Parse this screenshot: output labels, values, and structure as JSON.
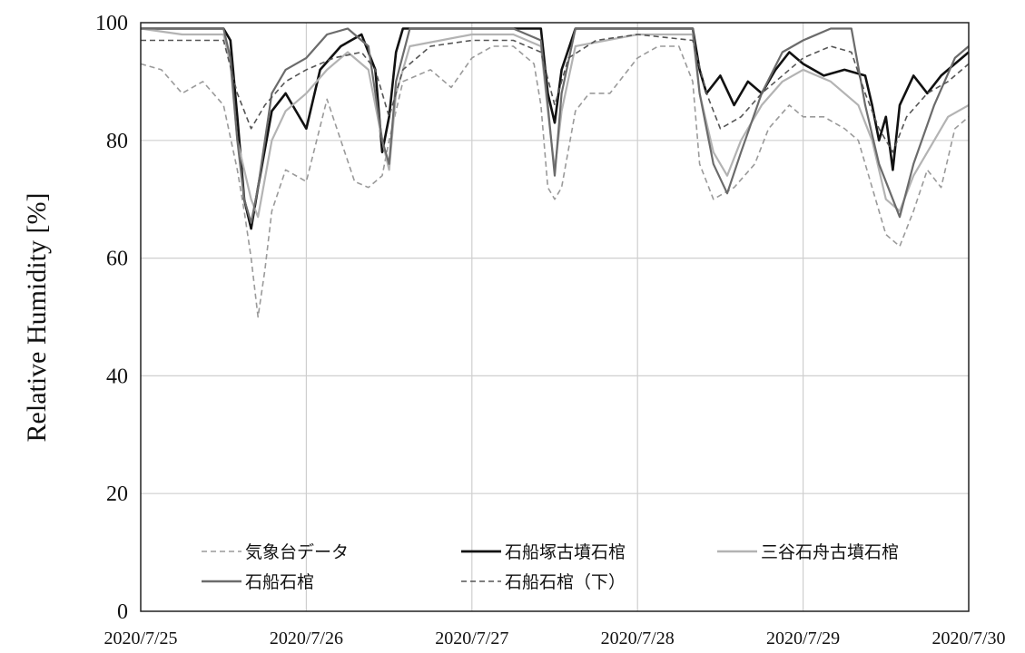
{
  "chart_data": {
    "type": "line",
    "title": "",
    "xlabel": "",
    "ylabel": "Relative Humidity [%]",
    "x_range": [
      "2020/7/25",
      "2020/7/30"
    ],
    "ylim": [
      0,
      100
    ],
    "y_ticks": [
      0,
      20,
      40,
      60,
      80,
      100
    ],
    "x_tick_labels": [
      "2020/7/25",
      "2020/7/26",
      "2020/7/27",
      "2020/7/28",
      "2020/7/29",
      "2020/7/30"
    ],
    "grid": true,
    "legend_position": "bottom",
    "series": [
      {
        "name": "気象台データ",
        "color": "#9a9a9a",
        "dash": "dashed",
        "points": [
          [
            "2020/7/25 00:00",
            93
          ],
          [
            "2020/7/25 03:00",
            92
          ],
          [
            "2020/7/25 06:00",
            88
          ],
          [
            "2020/7/25 09:00",
            90
          ],
          [
            "2020/7/25 12:00",
            86
          ],
          [
            "2020/7/25 14:00",
            75
          ],
          [
            "2020/7/25 15:00",
            68
          ],
          [
            "2020/7/25 16:00",
            60
          ],
          [
            "2020/7/25 17:00",
            50
          ],
          [
            "2020/7/25 18:00",
            58
          ],
          [
            "2020/7/25 19:00",
            68
          ],
          [
            "2020/7/25 21:00",
            75
          ],
          [
            "2020/7/26 00:00",
            73
          ],
          [
            "2020/7/26 03:00",
            87
          ],
          [
            "2020/7/26 05:00",
            80
          ],
          [
            "2020/7/26 07:00",
            73
          ],
          [
            "2020/7/26 09:00",
            72
          ],
          [
            "2020/7/26 11:00",
            74
          ],
          [
            "2020/7/26 12:00",
            80
          ],
          [
            "2020/7/26 14:00",
            90
          ],
          [
            "2020/7/26 18:00",
            92
          ],
          [
            "2020/7/26 21:00",
            89
          ],
          [
            "2020/7/27 00:00",
            94
          ],
          [
            "2020/7/27 03:00",
            96
          ],
          [
            "2020/7/27 06:00",
            96
          ],
          [
            "2020/7/27 09:00",
            93
          ],
          [
            "2020/7/27 10:00",
            86
          ],
          [
            "2020/7/27 11:00",
            72
          ],
          [
            "2020/7/27 12:00",
            70
          ],
          [
            "2020/7/27 13:00",
            72
          ],
          [
            "2020/7/27 15:00",
            85
          ],
          [
            "2020/7/27 17:00",
            88
          ],
          [
            "2020/7/27 20:00",
            88
          ],
          [
            "2020/7/28 00:00",
            94
          ],
          [
            "2020/7/28 03:00",
            96
          ],
          [
            "2020/7/28 06:00",
            96
          ],
          [
            "2020/7/28 08:00",
            90
          ],
          [
            "2020/7/28 09:00",
            76
          ],
          [
            "2020/7/28 11:00",
            70
          ],
          [
            "2020/7/28 14:00",
            72
          ],
          [
            "2020/7/28 17:00",
            76
          ],
          [
            "2020/7/28 19:00",
            82
          ],
          [
            "2020/7/28 22:00",
            86
          ],
          [
            "2020/7/29 00:00",
            84
          ],
          [
            "2020/7/29 03:00",
            84
          ],
          [
            "2020/7/29 06:00",
            82
          ],
          [
            "2020/7/29 08:00",
            80
          ],
          [
            "2020/7/29 10:00",
            72
          ],
          [
            "2020/7/29 12:00",
            64
          ],
          [
            "2020/7/29 14:00",
            62
          ],
          [
            "2020/7/29 16:00",
            68
          ],
          [
            "2020/7/29 18:00",
            75
          ],
          [
            "2020/7/29 20:00",
            72
          ],
          [
            "2020/7/29 22:00",
            82
          ],
          [
            "2020/7/30 00:00",
            84
          ]
        ]
      },
      {
        "name": "石船塚古墳石棺",
        "color": "#111111",
        "dash": "solid",
        "points": [
          [
            "2020/7/25 00:00",
            99
          ],
          [
            "2020/7/25 06:00",
            99
          ],
          [
            "2020/7/25 12:00",
            99
          ],
          [
            "2020/7/25 13:00",
            97
          ],
          [
            "2020/7/25 14:00",
            84
          ],
          [
            "2020/7/25 15:00",
            70
          ],
          [
            "2020/7/25 16:00",
            65
          ],
          [
            "2020/7/25 17:00",
            72
          ],
          [
            "2020/7/25 19:00",
            85
          ],
          [
            "2020/7/25 21:00",
            88
          ],
          [
            "2020/7/26 00:00",
            82
          ],
          [
            "2020/7/26 02:00",
            92
          ],
          [
            "2020/7/26 05:00",
            96
          ],
          [
            "2020/7/26 08:00",
            98
          ],
          [
            "2020/7/26 10:00",
            92
          ],
          [
            "2020/7/26 11:00",
            78
          ],
          [
            "2020/7/26 12:00",
            84
          ],
          [
            "2020/7/26 13:00",
            95
          ],
          [
            "2020/7/26 14:00",
            99
          ],
          [
            "2020/7/27 00:00",
            99
          ],
          [
            "2020/7/27 06:00",
            99
          ],
          [
            "2020/7/27 10:00",
            99
          ],
          [
            "2020/7/27 11:00",
            88
          ],
          [
            "2020/7/27 12:00",
            83
          ],
          [
            "2020/7/27 13:00",
            92
          ],
          [
            "2020/7/27 15:00",
            99
          ],
          [
            "2020/7/28 00:00",
            99
          ],
          [
            "2020/7/28 08:00",
            99
          ],
          [
            "2020/7/28 09:00",
            92
          ],
          [
            "2020/7/28 10:00",
            88
          ],
          [
            "2020/7/28 12:00",
            91
          ],
          [
            "2020/7/28 14:00",
            86
          ],
          [
            "2020/7/28 16:00",
            90
          ],
          [
            "2020/7/28 18:00",
            88
          ],
          [
            "2020/7/28 20:00",
            92
          ],
          [
            "2020/7/28 22:00",
            95
          ],
          [
            "2020/7/29 00:00",
            93
          ],
          [
            "2020/7/29 03:00",
            91
          ],
          [
            "2020/7/29 06:00",
            92
          ],
          [
            "2020/7/29 09:00",
            91
          ],
          [
            "2020/7/29 10:00",
            86
          ],
          [
            "2020/7/29 11:00",
            80
          ],
          [
            "2020/7/29 12:00",
            84
          ],
          [
            "2020/7/29 13:00",
            75
          ],
          [
            "2020/7/29 14:00",
            86
          ],
          [
            "2020/7/29 16:00",
            91
          ],
          [
            "2020/7/29 18:00",
            88
          ],
          [
            "2020/7/29 20:00",
            91
          ],
          [
            "2020/7/29 22:00",
            93
          ],
          [
            "2020/7/30 00:00",
            95
          ]
        ]
      },
      {
        "name": "三谷石舟古墳石棺",
        "color": "#b3b3b3",
        "dash": "solid",
        "points": [
          [
            "2020/7/25 00:00",
            99
          ],
          [
            "2020/7/25 06:00",
            98
          ],
          [
            "2020/7/25 12:00",
            98
          ],
          [
            "2020/7/25 13:00",
            93
          ],
          [
            "2020/7/25 14:00",
            80
          ],
          [
            "2020/7/25 16:00",
            70
          ],
          [
            "2020/7/25 17:00",
            67
          ],
          [
            "2020/7/25 19:00",
            80
          ],
          [
            "2020/7/25 21:00",
            85
          ],
          [
            "2020/7/26 00:00",
            88
          ],
          [
            "2020/7/26 03:00",
            92
          ],
          [
            "2020/7/26 06:00",
            95
          ],
          [
            "2020/7/26 09:00",
            92
          ],
          [
            "2020/7/26 11:00",
            80
          ],
          [
            "2020/7/26 12:00",
            75
          ],
          [
            "2020/7/26 13:00",
            88
          ],
          [
            "2020/7/26 15:00",
            96
          ],
          [
            "2020/7/27 00:00",
            98
          ],
          [
            "2020/7/27 06:00",
            98
          ],
          [
            "2020/7/27 10:00",
            96
          ],
          [
            "2020/7/27 11:00",
            85
          ],
          [
            "2020/7/27 12:00",
            75
          ],
          [
            "2020/7/27 13:00",
            85
          ],
          [
            "2020/7/27 15:00",
            96
          ],
          [
            "2020/7/28 00:00",
            98
          ],
          [
            "2020/7/28 08:00",
            98
          ],
          [
            "2020/7/28 09:00",
            88
          ],
          [
            "2020/7/28 11:00",
            78
          ],
          [
            "2020/7/28 13:00",
            74
          ],
          [
            "2020/7/28 15:00",
            80
          ],
          [
            "2020/7/28 18:00",
            86
          ],
          [
            "2020/7/28 21:00",
            90
          ],
          [
            "2020/7/29 00:00",
            92
          ],
          [
            "2020/7/29 04:00",
            90
          ],
          [
            "2020/7/29 08:00",
            86
          ],
          [
            "2020/7/29 10:00",
            80
          ],
          [
            "2020/7/29 12:00",
            70
          ],
          [
            "2020/7/29 14:00",
            68
          ],
          [
            "2020/7/29 16:00",
            74
          ],
          [
            "2020/7/29 18:00",
            78
          ],
          [
            "2020/7/29 21:00",
            84
          ],
          [
            "2020/7/30 00:00",
            86
          ]
        ]
      },
      {
        "name": "石船石棺",
        "color": "#6b6b6b",
        "dash": "solid",
        "points": [
          [
            "2020/7/25 00:00",
            99
          ],
          [
            "2020/7/25 06:00",
            99
          ],
          [
            "2020/7/25 12:00",
            99
          ],
          [
            "2020/7/25 13:00",
            94
          ],
          [
            "2020/7/25 14:00",
            80
          ],
          [
            "2020/7/25 15:00",
            70
          ],
          [
            "2020/7/25 16:00",
            66
          ],
          [
            "2020/7/25 17:00",
            72
          ],
          [
            "2020/7/25 19:00",
            88
          ],
          [
            "2020/7/25 21:00",
            92
          ],
          [
            "2020/7/26 00:00",
            94
          ],
          [
            "2020/7/26 03:00",
            98
          ],
          [
            "2020/7/26 06:00",
            99
          ],
          [
            "2020/7/26 09:00",
            96
          ],
          [
            "2020/7/26 11:00",
            80
          ],
          [
            "2020/7/26 12:00",
            76
          ],
          [
            "2020/7/26 13:00",
            90
          ],
          [
            "2020/7/26 15:00",
            99
          ],
          [
            "2020/7/27 00:00",
            99
          ],
          [
            "2020/7/27 06:00",
            99
          ],
          [
            "2020/7/27 10:00",
            97
          ],
          [
            "2020/7/27 11:00",
            86
          ],
          [
            "2020/7/27 12:00",
            74
          ],
          [
            "2020/7/27 13:00",
            88
          ],
          [
            "2020/7/27 15:00",
            99
          ],
          [
            "2020/7/28 00:00",
            99
          ],
          [
            "2020/7/28 08:00",
            99
          ],
          [
            "2020/7/28 09:00",
            88
          ],
          [
            "2020/7/28 11:00",
            76
          ],
          [
            "2020/7/28 13:00",
            71
          ],
          [
            "2020/7/28 15:00",
            78
          ],
          [
            "2020/7/28 18:00",
            88
          ],
          [
            "2020/7/28 21:00",
            95
          ],
          [
            "2020/7/29 00:00",
            97
          ],
          [
            "2020/7/29 04:00",
            99
          ],
          [
            "2020/7/29 07:00",
            99
          ],
          [
            "2020/7/29 09:00",
            86
          ],
          [
            "2020/7/29 11:00",
            76
          ],
          [
            "2020/7/29 13:00",
            70
          ],
          [
            "2020/7/29 14:00",
            67
          ],
          [
            "2020/7/29 16:00",
            76
          ],
          [
            "2020/7/29 19:00",
            86
          ],
          [
            "2020/7/29 22:00",
            94
          ],
          [
            "2020/7/30 00:00",
            96
          ]
        ]
      },
      {
        "name": "石船石棺（下）",
        "color": "#555555",
        "dash": "dashed",
        "points": [
          [
            "2020/7/25 00:00",
            97
          ],
          [
            "2020/7/25 06:00",
            97
          ],
          [
            "2020/7/25 12:00",
            97
          ],
          [
            "2020/7/25 14:00",
            88
          ],
          [
            "2020/7/25 16:00",
            82
          ],
          [
            "2020/7/25 18:00",
            86
          ],
          [
            "2020/7/25 21:00",
            90
          ],
          [
            "2020/7/26 00:00",
            92
          ],
          [
            "2020/7/26 04:00",
            94
          ],
          [
            "2020/7/26 08:00",
            95
          ],
          [
            "2020/7/26 10:00",
            92
          ],
          [
            "2020/7/26 12:00",
            84
          ],
          [
            "2020/7/26 14:00",
            92
          ],
          [
            "2020/7/26 18:00",
            96
          ],
          [
            "2020/7/27 00:00",
            97
          ],
          [
            "2020/7/27 06:00",
            97
          ],
          [
            "2020/7/27 10:00",
            95
          ],
          [
            "2020/7/27 12:00",
            86
          ],
          [
            "2020/7/27 14:00",
            94
          ],
          [
            "2020/7/27 18:00",
            97
          ],
          [
            "2020/7/28 00:00",
            98
          ],
          [
            "2020/7/28 08:00",
            97
          ],
          [
            "2020/7/28 10:00",
            88
          ],
          [
            "2020/7/28 12:00",
            82
          ],
          [
            "2020/7/28 15:00",
            84
          ],
          [
            "2020/7/28 18:00",
            88
          ],
          [
            "2020/7/28 22:00",
            92
          ],
          [
            "2020/7/29 00:00",
            94
          ],
          [
            "2020/7/29 04:00",
            96
          ],
          [
            "2020/7/29 07:00",
            95
          ],
          [
            "2020/7/29 09:00",
            88
          ],
          [
            "2020/7/29 11:00",
            82
          ],
          [
            "2020/7/29 13:00",
            78
          ],
          [
            "2020/7/29 15:00",
            84
          ],
          [
            "2020/7/29 18:00",
            88
          ],
          [
            "2020/7/29 21:00",
            90
          ],
          [
            "2020/7/30 00:00",
            93
          ]
        ]
      }
    ]
  }
}
